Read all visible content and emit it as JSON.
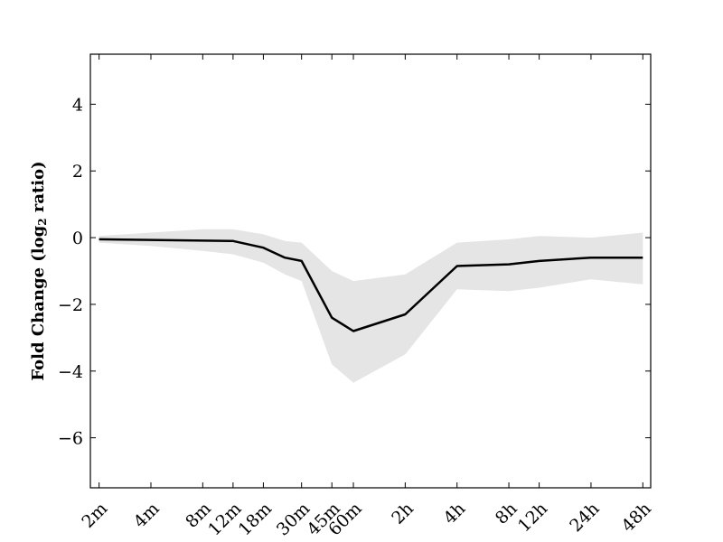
{
  "chart_data": {
    "type": "line",
    "title": "",
    "xlabel": "",
    "ylabel": {
      "prefix": "Fold Change (log",
      "subscript": "2",
      "suffix": " ratio)"
    },
    "x_ticks": [
      "2m",
      "4m",
      "8m",
      "12m",
      "18m",
      "30m",
      "45m",
      "60m",
      "2h",
      "4h",
      "8h",
      "12h",
      "24h",
      "48h"
    ],
    "x_minutes": [
      2,
      4,
      8,
      12,
      18,
      30,
      45,
      60,
      120,
      240,
      480,
      720,
      1440,
      2880
    ],
    "x_scale": "log",
    "x_range_minutes": [
      1.78,
      3200
    ],
    "y_ticks": [
      4,
      2,
      0,
      -2,
      -4,
      -6
    ],
    "y_tick_labels": [
      "4",
      "2",
      "0",
      "−2",
      "−4",
      "−6"
    ],
    "ylim": [
      -7.5,
      5.5
    ],
    "grid": false,
    "series": [
      {
        "x": [
          2,
          12,
          18,
          24,
          30,
          45,
          60,
          120,
          240,
          480,
          720,
          1440,
          2880
        ],
        "values": [
          -0.05,
          -0.1,
          -0.3,
          -0.6,
          -0.7,
          -2.4,
          -2.8,
          -2.3,
          -0.85,
          -0.8,
          -0.7,
          -0.6,
          -0.6
        ],
        "color": "#000000"
      }
    ],
    "band": {
      "x": [
        2,
        4,
        8,
        12,
        18,
        24,
        30,
        45,
        60,
        120,
        240,
        480,
        720,
        1440,
        2880
      ],
      "upper": [
        0.05,
        0.15,
        0.25,
        0.25,
        0.1,
        -0.1,
        -0.15,
        -1.0,
        -1.3,
        -1.1,
        -0.15,
        -0.05,
        0.05,
        0.0,
        0.15
      ],
      "lower": [
        -0.15,
        -0.25,
        -0.4,
        -0.5,
        -0.75,
        -1.1,
        -1.3,
        -3.8,
        -4.35,
        -3.5,
        -1.55,
        -1.6,
        -1.5,
        -1.25,
        -1.4
      ],
      "color": "#e5e5e5"
    }
  }
}
